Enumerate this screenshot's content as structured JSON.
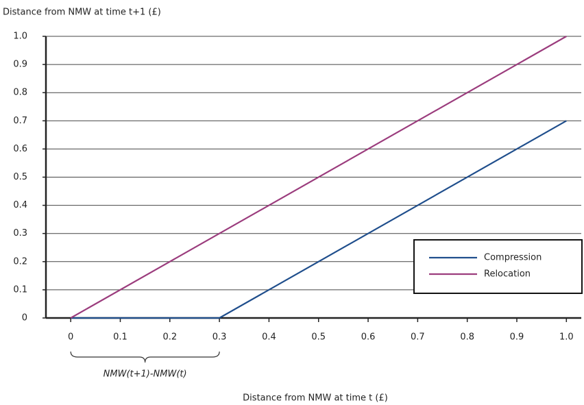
{
  "chart_data": {
    "type": "line",
    "y_label": "Distance from NMW at time t+1 (£)",
    "x_label": "Distance from NMW at time t (£)",
    "xlim": [
      -0.05,
      1.03
    ],
    "ylim": [
      0,
      1
    ],
    "xticks": [
      0,
      0.1,
      0.2,
      0.3,
      0.4,
      0.5,
      0.6,
      0.7,
      0.8,
      0.9,
      {
        "value": 1,
        "label": "1.0"
      }
    ],
    "yticks": [
      0,
      0.1,
      0.2,
      0.3,
      0.4,
      0.5,
      0.6,
      0.7,
      0.8,
      0.9,
      {
        "value": 1,
        "label": "1.0"
      }
    ],
    "grid": true,
    "legend": "lower right",
    "series": [
      {
        "name": "Compression",
        "color": "#1f4e8c",
        "x": [
          0,
          0.3,
          1
        ],
        "values": [
          0,
          0,
          0.7
        ]
      },
      {
        "name": "Relocation",
        "color": "#9b3c7d",
        "x": [
          0,
          1
        ],
        "values": [
          0,
          1
        ]
      }
    ],
    "annotations": [
      {
        "text": "NMW(t+1)-NMW(t)",
        "span": [
          0,
          0.3
        ]
      }
    ]
  }
}
